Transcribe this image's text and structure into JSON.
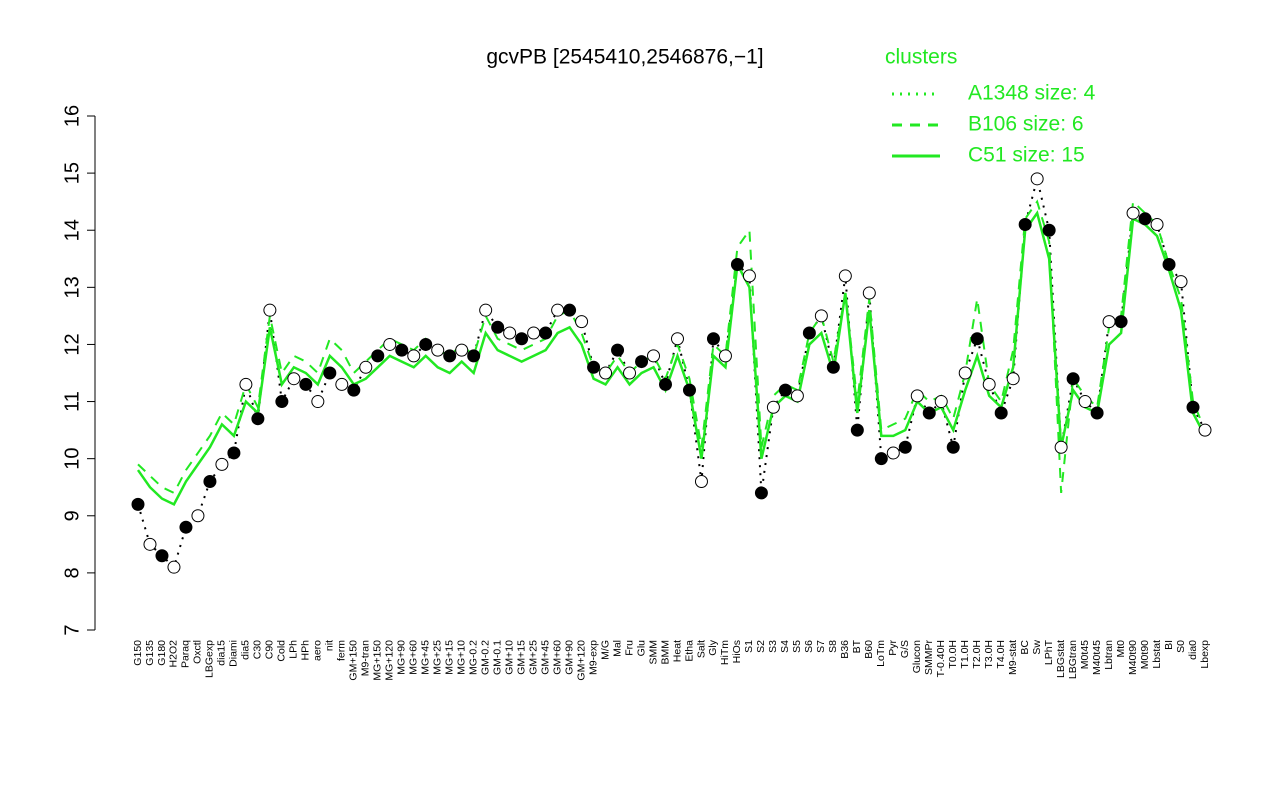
{
  "chart_data": {
    "type": "line",
    "title": "gcvPB [2545410,2546876,−1]",
    "legend_title": "clusters",
    "legend_color": "#22e822",
    "ylim": [
      7,
      16
    ],
    "yticks": [
      7,
      8,
      9,
      10,
      11,
      12,
      13,
      14,
      15,
      16
    ],
    "categories": [
      "G150",
      "G135",
      "G180",
      "H2O2",
      "Paraq",
      "Oxctl",
      "LBGexp",
      "dia15",
      "Diami",
      "dia5",
      "C30",
      "C90",
      "Cold",
      "LPh",
      "HPh",
      "aero",
      "nit",
      "ferm",
      "GM+150",
      "M9-tran",
      "MG+150",
      "MG+120",
      "MG+90",
      "MG+60",
      "MG+45",
      "MG+25",
      "MG+15",
      "MG+10",
      "MG-0.2",
      "GM-0.2",
      "GM-0.1",
      "GM+10",
      "GM+15",
      "GM+25",
      "GM+45",
      "GM+60",
      "GM+90",
      "GM+120",
      "M9-exp",
      "M/G",
      "Mal",
      "Fru",
      "Glu",
      "SMM",
      "BMM",
      "Heat",
      "Etha",
      "Salt",
      "Gly",
      "HiTm",
      "HiOs",
      "S1",
      "S2",
      "S3",
      "S4",
      "S5",
      "S6",
      "S7",
      "S8",
      "B36",
      "BT",
      "B60",
      "LoTm",
      "Pyr",
      "G/S",
      "Glucon",
      "SMMPr",
      "T-0.40H",
      "T0.0H",
      "T1.0H",
      "T2.0H",
      "T3.0H",
      "T4.0H",
      "M9-stat",
      "BC",
      "Sw",
      "LPhT",
      "LBGstat",
      "LBGtran",
      "M0t45",
      "M40t45",
      "Lbtran",
      "Mt0",
      "M40t90",
      "M0t90",
      "Lbstat",
      "BI",
      "S0",
      "dia0",
      "Lbexp"
    ],
    "points": [
      9.2,
      8.5,
      8.3,
      8.1,
      8.8,
      9.0,
      9.6,
      9.9,
      10.1,
      11.3,
      10.7,
      12.6,
      11.0,
      11.4,
      11.3,
      11.0,
      11.5,
      11.3,
      11.2,
      11.6,
      11.8,
      12.0,
      11.9,
      11.8,
      12.0,
      11.9,
      11.8,
      11.9,
      11.8,
      12.6,
      12.3,
      12.2,
      12.1,
      12.2,
      12.2,
      12.6,
      12.6,
      12.4,
      11.6,
      11.5,
      11.9,
      11.5,
      11.7,
      11.8,
      11.3,
      12.1,
      11.2,
      9.6,
      12.1,
      11.8,
      13.4,
      13.2,
      9.4,
      10.9,
      11.2,
      11.1,
      12.2,
      12.5,
      11.6,
      13.2,
      10.5,
      12.9,
      10.0,
      10.1,
      10.2,
      11.1,
      10.8,
      11.0,
      10.2,
      11.5,
      12.1,
      11.3,
      10.8,
      11.4,
      14.1,
      14.9,
      14.0,
      10.2,
      11.4,
      11.0,
      10.8,
      12.4,
      12.4,
      14.3,
      14.2,
      14.1,
      13.4,
      13.1,
      10.9,
      10.5
    ],
    "series": [
      {
        "name": "A1348 size: 4",
        "color": "#22e822",
        "style": "dotted",
        "values": [
          9.2,
          8.5,
          8.3,
          8.1,
          8.8,
          9.0,
          9.6,
          9.9,
          10.1,
          11.3,
          10.7,
          12.6,
          11.0,
          11.4,
          11.3,
          11.0,
          11.5,
          11.3,
          11.2,
          11.6,
          11.8,
          12.0,
          11.9,
          11.8,
          12.0,
          11.9,
          11.8,
          11.9,
          11.8,
          12.6,
          12.3,
          12.2,
          12.1,
          12.2,
          12.2,
          12.6,
          12.6,
          12.4,
          11.6,
          11.5,
          11.9,
          11.5,
          11.7,
          11.8,
          11.3,
          12.1,
          11.2,
          9.6,
          12.1,
          11.8,
          13.4,
          13.2,
          9.4,
          10.9,
          11.2,
          11.1,
          12.2,
          12.5,
          11.6,
          13.2,
          10.5,
          12.9,
          10.0,
          10.1,
          10.2,
          11.1,
          10.8,
          11.0,
          10.2,
          11.5,
          12.1,
          11.3,
          10.8,
          11.4,
          14.1,
          14.9,
          14.0,
          10.2,
          11.4,
          11.0,
          10.8,
          12.4,
          12.4,
          14.3,
          14.2,
          14.1,
          13.4,
          13.1,
          10.9,
          10.5
        ]
      },
      {
        "name": "B106 size: 6",
        "color": "#22e822",
        "style": "dashed",
        "values": [
          9.9,
          9.7,
          9.5,
          9.4,
          9.8,
          10.1,
          10.4,
          10.8,
          10.6,
          11.3,
          10.9,
          12.5,
          11.5,
          11.8,
          11.7,
          11.5,
          12.1,
          11.9,
          11.5,
          11.7,
          11.9,
          12.1,
          12.0,
          11.9,
          12.1,
          11.9,
          11.8,
          12.0,
          11.8,
          12.5,
          12.1,
          12.0,
          11.9,
          12.0,
          12.1,
          12.5,
          12.6,
          12.2,
          11.6,
          11.5,
          11.8,
          11.5,
          11.7,
          11.8,
          11.4,
          12.0,
          11.4,
          10.2,
          12.0,
          11.8,
          13.7,
          14.0,
          10.2,
          11.1,
          11.3,
          11.2,
          12.2,
          12.5,
          11.7,
          12.9,
          11.0,
          12.8,
          10.5,
          10.6,
          10.7,
          11.2,
          11.0,
          11.1,
          10.7,
          11.5,
          12.8,
          11.3,
          11.0,
          11.9,
          14.2,
          14.5,
          13.8,
          9.4,
          11.4,
          11.1,
          10.9,
          12.3,
          12.5,
          14.5,
          14.3,
          14.1,
          13.4,
          12.8,
          11.0,
          10.5
        ]
      },
      {
        "name": "C51 size: 15",
        "color": "#22e822",
        "style": "solid",
        "values": [
          9.8,
          9.5,
          9.3,
          9.2,
          9.6,
          9.9,
          10.2,
          10.6,
          10.4,
          11.0,
          10.8,
          12.3,
          11.3,
          11.6,
          11.5,
          11.3,
          11.8,
          11.6,
          11.3,
          11.4,
          11.6,
          11.8,
          11.7,
          11.6,
          11.8,
          11.6,
          11.5,
          11.7,
          11.5,
          12.2,
          11.9,
          11.8,
          11.7,
          11.8,
          11.9,
          12.2,
          12.3,
          12.0,
          11.4,
          11.3,
          11.6,
          11.3,
          11.5,
          11.6,
          11.2,
          11.8,
          11.2,
          10.0,
          11.8,
          11.6,
          13.4,
          13.0,
          10.0,
          10.9,
          11.1,
          11.0,
          12.0,
          12.2,
          11.5,
          12.9,
          10.8,
          12.6,
          10.4,
          10.4,
          10.5,
          11.0,
          10.8,
          10.9,
          10.5,
          11.2,
          11.8,
          11.1,
          10.9,
          11.6,
          14.0,
          14.3,
          13.5,
          10.2,
          11.2,
          10.9,
          10.8,
          12.0,
          12.2,
          14.2,
          14.1,
          13.9,
          13.3,
          12.6,
          10.8,
          10.4
        ]
      }
    ]
  }
}
